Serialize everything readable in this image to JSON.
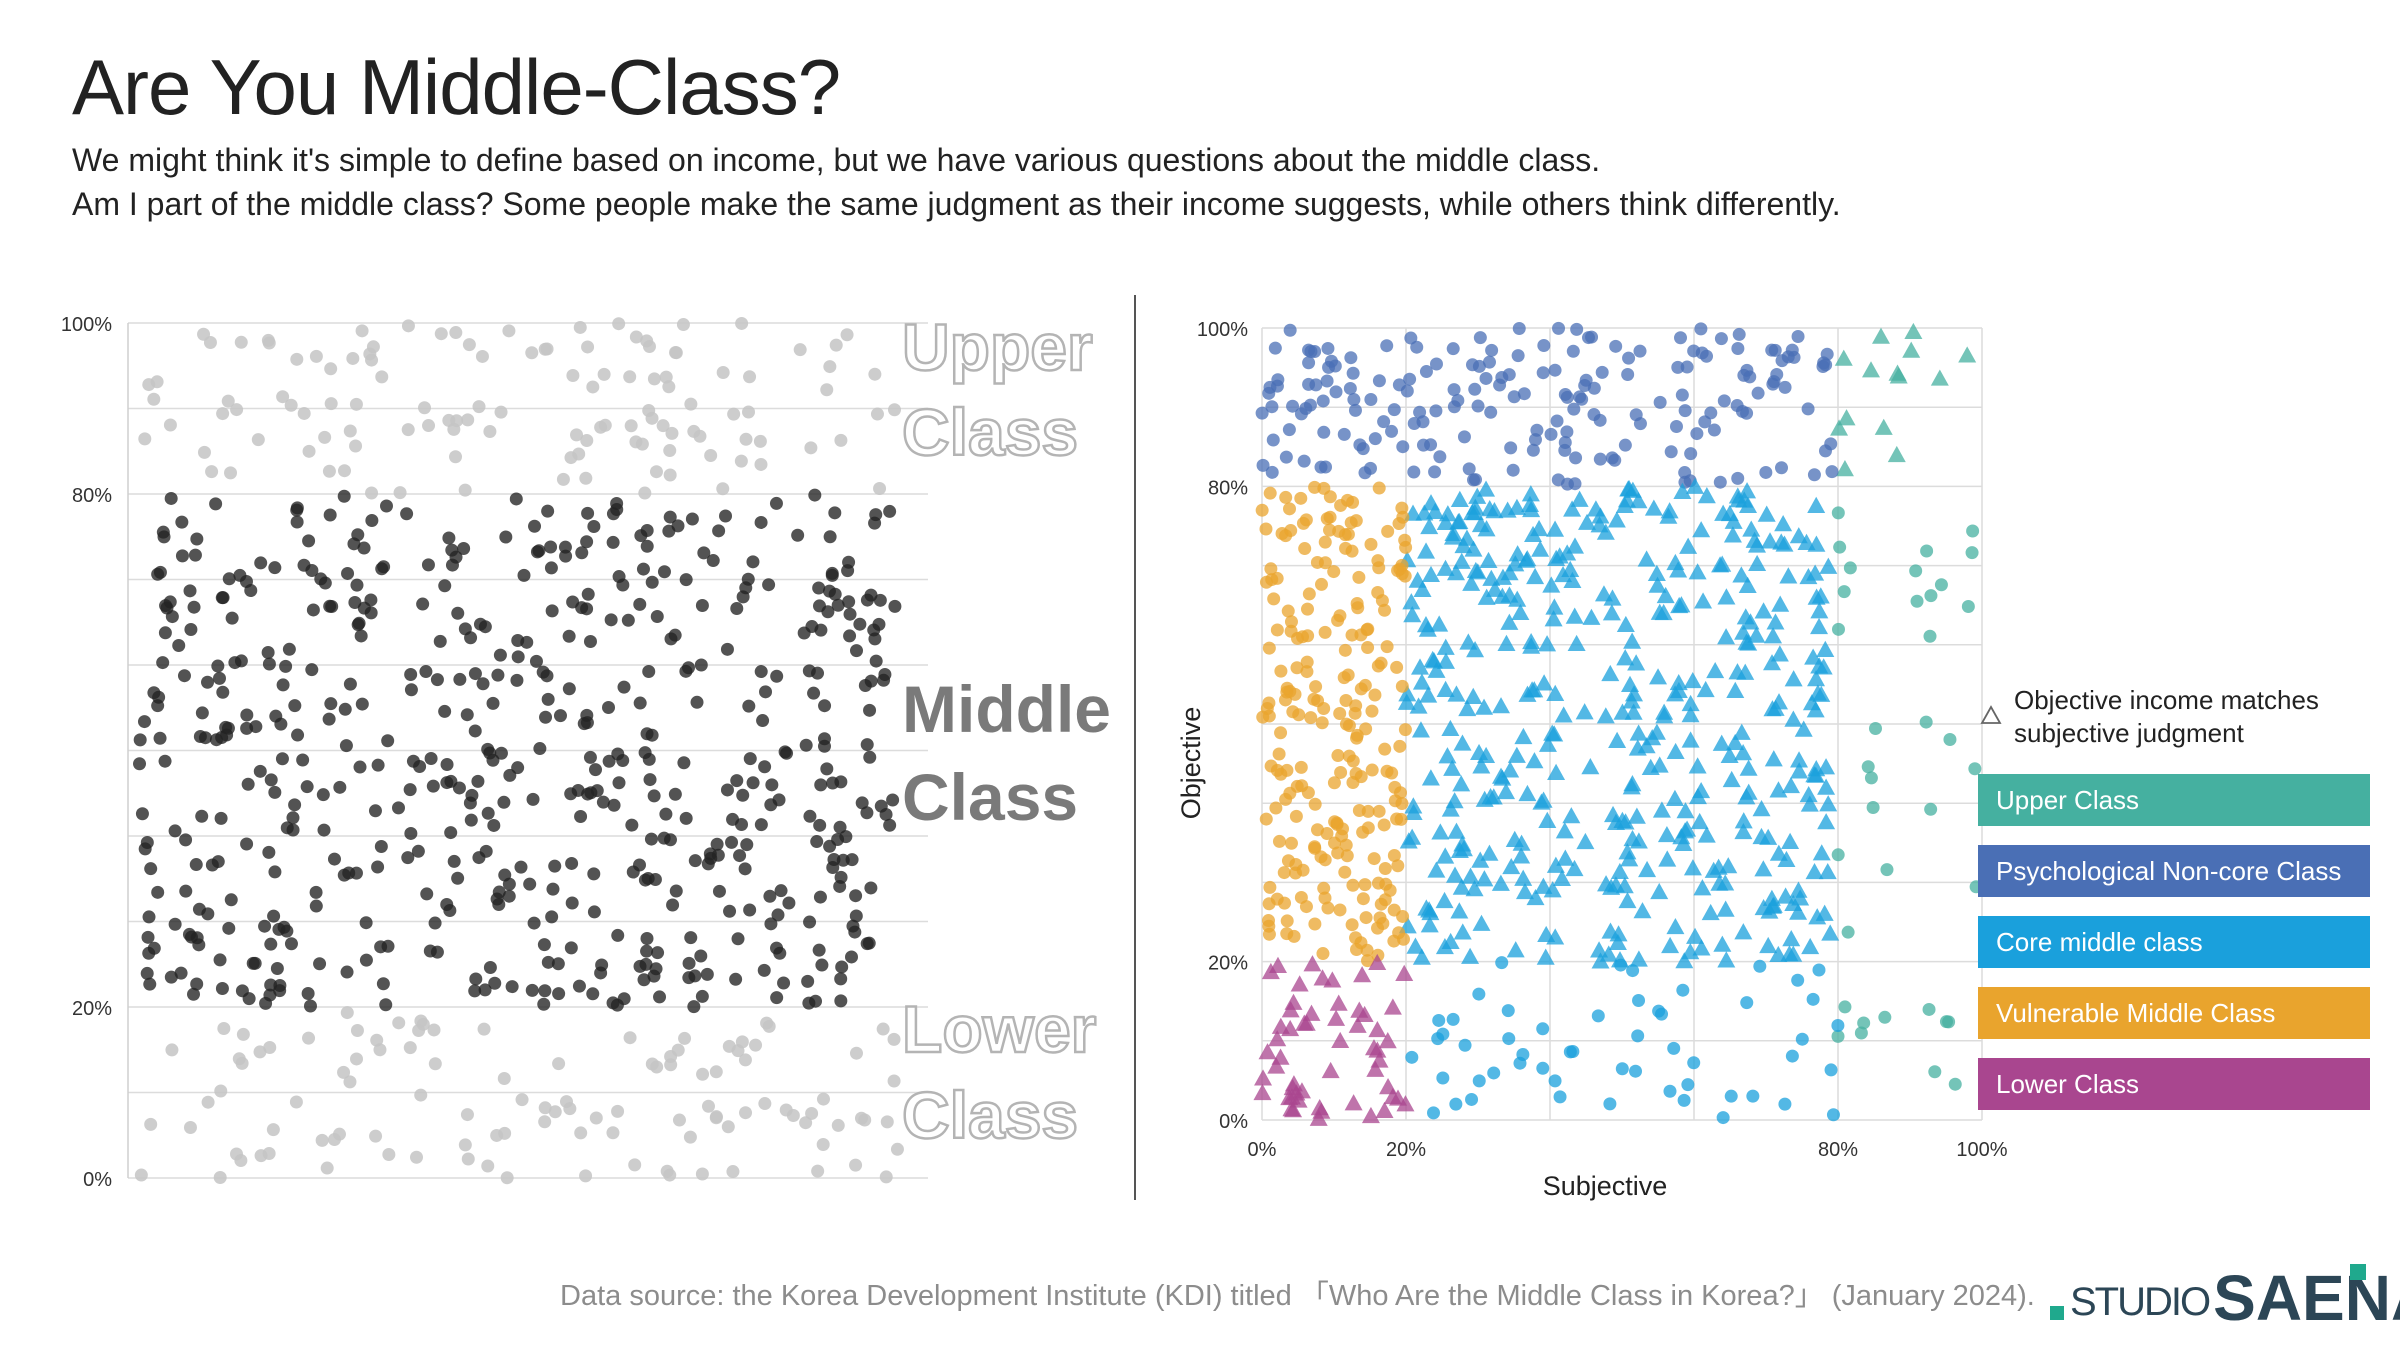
{
  "header": {
    "title": "Are You Middle-Class?",
    "subtitle_line1": "We might think it's simple to define based on income, but we have various questions about the middle class.",
    "subtitle_line2": "Am I part of the middle class? Some people make the same judgment as their income suggests, while others think differently."
  },
  "colors": {
    "upper": "#45b0a0",
    "psychological": "#4a6fb5",
    "core": "#1aa0dc",
    "vulnerable": "#e9a42d",
    "lower": "#a9468f",
    "dark_dot": "#222222",
    "light_dot": "#c4c4c4"
  },
  "chart_data": [
    {
      "type": "scatter",
      "panel": "left",
      "title": "",
      "xlabel": "",
      "ylabel": "",
      "ylim": [
        0,
        100
      ],
      "y_ticks": [
        "0%",
        "20%",
        "80%",
        "100%"
      ],
      "y_tick_values": [
        0,
        20,
        80,
        100
      ],
      "band_labels": [
        {
          "line1": "Upper",
          "line2": "Class",
          "style": "outline"
        },
        {
          "line1": "Middle",
          "line2": "Class",
          "style": "solid"
        },
        {
          "line1": "Lower",
          "line2": "Class",
          "style": "outline"
        }
      ],
      "series": [
        {
          "group": "upper",
          "y_range": [
            80,
            100
          ],
          "approx_count": 120
        },
        {
          "group": "middle",
          "y_range": [
            20,
            80
          ],
          "approx_count": 560
        },
        {
          "group": "lower",
          "y_range": [
            0,
            20
          ],
          "approx_count": 110
        }
      ],
      "grid": true
    },
    {
      "type": "scatter",
      "panel": "right",
      "title": "",
      "xlabel": "Subjective",
      "ylabel": "Objective",
      "xlim": [
        0,
        100
      ],
      "ylim": [
        0,
        100
      ],
      "x_ticks": [
        "0%",
        "20%",
        "80%",
        "100%"
      ],
      "x_tick_values": [
        0,
        20,
        80,
        100
      ],
      "y_ticks": [
        "0%",
        "20%",
        "80%",
        "100%"
      ],
      "y_tick_values": [
        0,
        20,
        80,
        100
      ],
      "series": [
        {
          "name": "Upper Class",
          "x_range": [
            80,
            100
          ],
          "y_range": [
            0,
            100
          ],
          "marker_match": "triangle",
          "marker_other": "circle",
          "match_y_range": [
            80,
            100
          ],
          "approx_count": 50
        },
        {
          "name": "Psychological Non-core Class",
          "x_range": [
            0,
            80
          ],
          "y_range": [
            80,
            100
          ],
          "marker": "circle",
          "approx_count": 190
        },
        {
          "name": "Core middle class",
          "x_range": [
            20,
            80
          ],
          "y_range": [
            0,
            80
          ],
          "marker_match": "triangle",
          "marker_other": "circle",
          "match_y_range": [
            20,
            80
          ],
          "approx_count": 560
        },
        {
          "name": "Vulnerable Middle Class",
          "x_range": [
            0,
            20
          ],
          "y_range": [
            20,
            80
          ],
          "marker": "circle",
          "approx_count": 230
        },
        {
          "name": "Lower Class",
          "x_range": [
            0,
            20
          ],
          "y_range": [
            0,
            20
          ],
          "marker": "triangle",
          "approx_count": 55
        }
      ],
      "grid": true,
      "legend_position": "right",
      "legend_note": "Objective income matches subjective judgment"
    }
  ],
  "legend": {
    "note": "Objective income matches subjective judgment",
    "items": [
      {
        "label": "Upper Class",
        "color": "#45b0a0"
      },
      {
        "label": "Psychological Non-core Class",
        "color": "#4a6fb5"
      },
      {
        "label": "Core middle class",
        "color": "#1aa0dc"
      },
      {
        "label": "Vulnerable Middle Class",
        "color": "#e9a42d"
      },
      {
        "label": "Lower Class",
        "color": "#a9468f"
      }
    ]
  },
  "footer": {
    "source": "Data source:  the Korea Development Institute (KDI) titled 「Who Are the Middle Class in Korea?」 (January 2024).",
    "logo_left": "STUDIO",
    "logo_right": "SAENA"
  }
}
